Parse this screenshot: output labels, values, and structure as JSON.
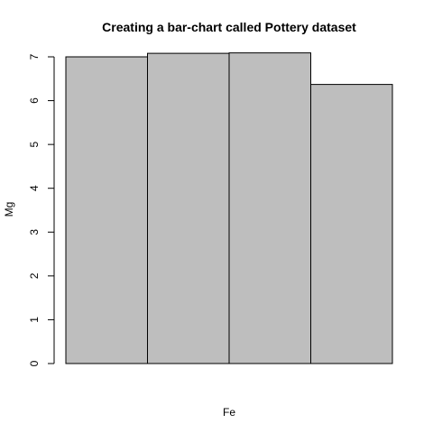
{
  "chart_data": {
    "type": "bar",
    "title": "Creating a bar-chart called Pottery dataset",
    "xlabel": "Fe",
    "ylabel": "Mg",
    "categories": [
      "",
      "",
      "",
      ""
    ],
    "values": [
      7.0,
      7.08,
      7.09,
      6.37
    ],
    "ylim": [
      0,
      7
    ],
    "yticks": [
      0,
      1,
      2,
      3,
      4,
      5,
      6,
      7
    ],
    "grid": false,
    "legend": "none",
    "colors": {
      "bar_fill": "#bebebe",
      "bar_stroke": "#000000",
      "axis": "#000000"
    }
  }
}
